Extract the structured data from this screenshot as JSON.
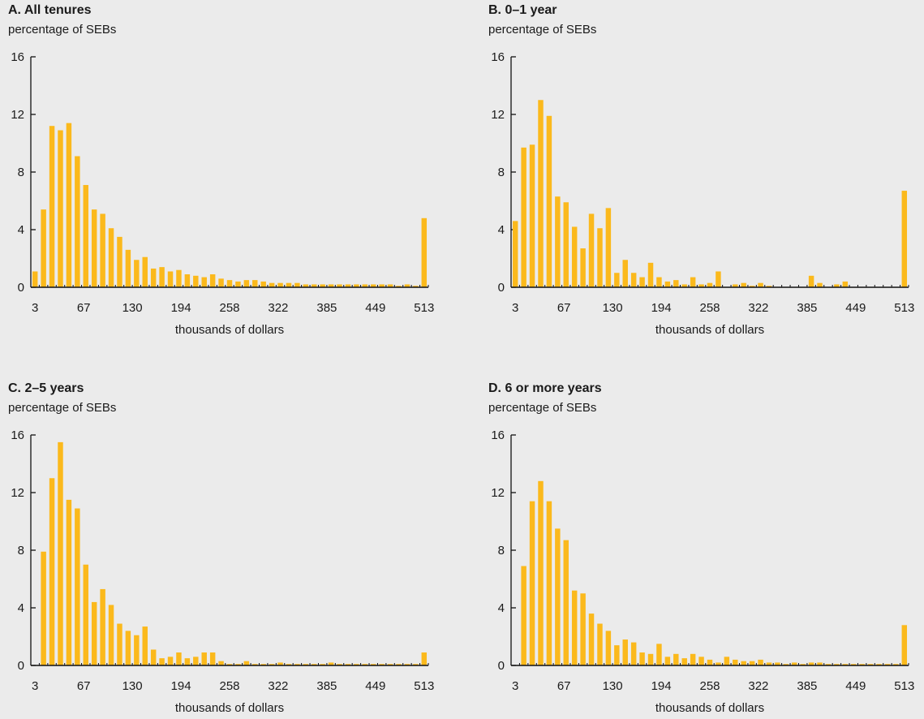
{
  "chart_data": [
    {
      "type": "bar",
      "title": "A. All tenures",
      "ylabel": "percentage of SEBs",
      "xlabel": "thousands of dollars",
      "ylim": [
        0,
        16
      ],
      "yticks": [
        0,
        4,
        8,
        12,
        16
      ],
      "xticks": [
        "3",
        "67",
        "130",
        "194",
        "258",
        "322",
        "385",
        "449",
        "513"
      ],
      "color": "#fbb91c",
      "values": [
        1.1,
        5.4,
        11.2,
        10.9,
        11.4,
        9.1,
        7.1,
        5.4,
        5.1,
        4.1,
        3.5,
        2.6,
        1.9,
        2.1,
        1.3,
        1.4,
        1.1,
        1.2,
        0.9,
        0.8,
        0.7,
        0.9,
        0.6,
        0.5,
        0.4,
        0.5,
        0.5,
        0.4,
        0.3,
        0.3,
        0.3,
        0.3,
        0.2,
        0.2,
        0.2,
        0.2,
        0.2,
        0.2,
        0.2,
        0.2,
        0.2,
        0.2,
        0.2,
        0.1,
        0.2,
        0.1,
        4.8
      ]
    },
    {
      "type": "bar",
      "title": "B. 0–1 year",
      "ylabel": "percentage of SEBs",
      "xlabel": "thousands of dollars",
      "ylim": [
        0,
        16
      ],
      "yticks": [
        0,
        4,
        8,
        12,
        16
      ],
      "xticks": [
        "3",
        "67",
        "130",
        "194",
        "258",
        "322",
        "385",
        "449",
        "513"
      ],
      "color": "#fbb91c",
      "values": [
        4.6,
        9.7,
        9.9,
        13.0,
        11.9,
        6.3,
        5.9,
        4.2,
        2.7,
        5.1,
        4.1,
        5.5,
        1.0,
        1.9,
        1.0,
        0.7,
        1.7,
        0.7,
        0.4,
        0.5,
        0.2,
        0.7,
        0.2,
        0.3,
        1.1,
        0.0,
        0.2,
        0.3,
        0.1,
        0.3,
        0.1,
        0.0,
        0.0,
        0.0,
        0.0,
        0.8,
        0.3,
        0.0,
        0.2,
        0.4,
        0.0,
        0.0,
        0.0,
        0.0,
        0.0,
        0.0,
        6.7
      ]
    },
    {
      "type": "bar",
      "title": "C. 2–5 years",
      "ylabel": "percentage of SEBs",
      "xlabel": "thousands of dollars",
      "ylim": [
        0,
        16
      ],
      "yticks": [
        0,
        4,
        8,
        12,
        16
      ],
      "xticks": [
        "3",
        "67",
        "130",
        "194",
        "258",
        "322",
        "385",
        "449",
        "513"
      ],
      "color": "#fbb91c",
      "values": [
        0.0,
        7.9,
        13.0,
        15.5,
        11.5,
        10.9,
        7.0,
        4.4,
        5.3,
        4.2,
        2.9,
        2.4,
        2.1,
        2.7,
        1.1,
        0.5,
        0.6,
        0.9,
        0.5,
        0.6,
        0.9,
        0.9,
        0.3,
        0.1,
        0.1,
        0.3,
        0.1,
        0.1,
        0.1,
        0.2,
        0.1,
        0.1,
        0.1,
        0.1,
        0.1,
        0.2,
        0.1,
        0.1,
        0.1,
        0.1,
        0.1,
        0.1,
        0.1,
        0.1,
        0.1,
        0.1,
        0.9
      ]
    },
    {
      "type": "bar",
      "title": "D. 6 or more years",
      "ylabel": "percentage of SEBs",
      "xlabel": "thousands of dollars",
      "ylim": [
        0,
        16
      ],
      "yticks": [
        0,
        4,
        8,
        12,
        16
      ],
      "xticks": [
        "3",
        "67",
        "130",
        "194",
        "258",
        "322",
        "385",
        "449",
        "513"
      ],
      "color": "#fbb91c",
      "values": [
        0.0,
        6.9,
        11.4,
        12.8,
        11.4,
        9.5,
        8.7,
        5.2,
        5.0,
        3.6,
        2.9,
        2.4,
        1.4,
        1.8,
        1.6,
        0.9,
        0.8,
        1.5,
        0.6,
        0.8,
        0.5,
        0.8,
        0.6,
        0.4,
        0.2,
        0.6,
        0.4,
        0.3,
        0.3,
        0.4,
        0.2,
        0.2,
        0.1,
        0.2,
        0.1,
        0.2,
        0.2,
        0.1,
        0.1,
        0.1,
        0.1,
        0.1,
        0.1,
        0.1,
        0.1,
        0.1,
        2.8
      ]
    }
  ]
}
